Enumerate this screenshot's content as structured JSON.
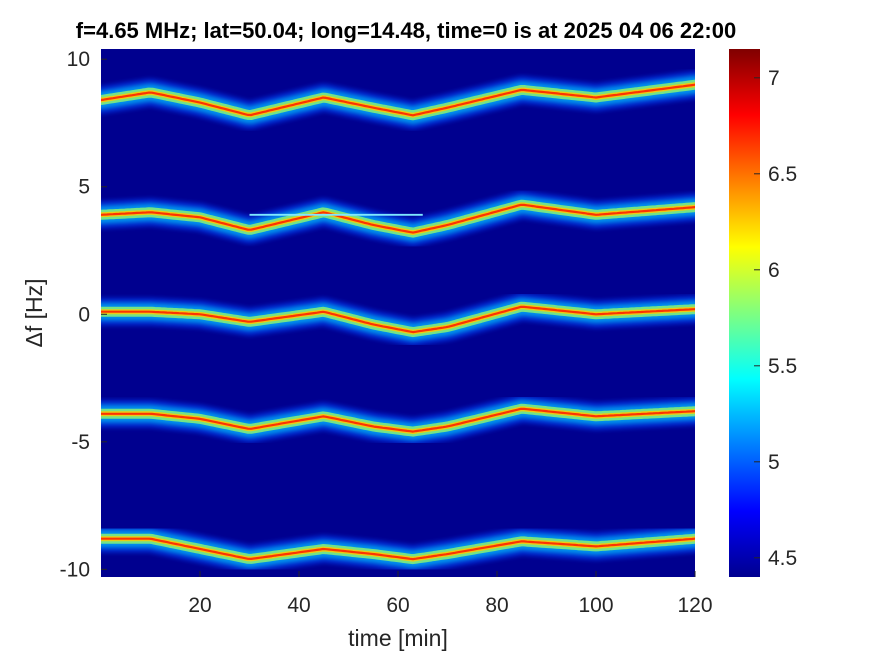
{
  "chart_data": {
    "type": "heatmap",
    "title": "f=4.65 MHz;  lat=50.04; long=14.48, time=0 is at 2025 04 06 22:00",
    "xlabel": "time [min]",
    "ylabel": "Δf [Hz]",
    "xlim": [
      0,
      120
    ],
    "ylim": [
      -10.3,
      10.4
    ],
    "xticks": [
      20,
      40,
      60,
      80,
      100,
      120
    ],
    "xtick_labels": [
      "20",
      "40",
      "60",
      "80",
      "100",
      "120"
    ],
    "yticks": [
      10,
      5,
      0,
      -5,
      -10
    ],
    "ytick_labels": [
      "10",
      "5",
      "0",
      "-5",
      "-10"
    ],
    "colormap": "jet",
    "background_color": "#00008f",
    "colorbar": {
      "min": 4.4,
      "max": 7.15,
      "ticks": [
        7,
        6.5,
        6,
        5.5,
        5,
        4.5
      ],
      "tick_labels": [
        "7",
        "6.5",
        "6",
        "5.5",
        "5",
        "4.5"
      ]
    },
    "traces": [
      {
        "name": "",
        "points": [
          [
            0,
            8.4
          ],
          [
            10,
            8.7
          ],
          [
            20,
            8.3
          ],
          [
            30,
            7.8
          ],
          [
            45,
            8.5
          ],
          [
            55,
            8.1
          ],
          [
            63,
            7.8
          ],
          [
            70,
            8.1
          ],
          [
            85,
            8.8
          ],
          [
            100,
            8.5
          ],
          [
            120,
            9.0
          ]
        ]
      },
      {
        "name": "",
        "points": [
          [
            0,
            3.9
          ],
          [
            10,
            4.0
          ],
          [
            20,
            3.8
          ],
          [
            30,
            3.3
          ],
          [
            45,
            4.0
          ],
          [
            55,
            3.5
          ],
          [
            63,
            3.2
          ],
          [
            70,
            3.5
          ],
          [
            85,
            4.3
          ],
          [
            100,
            3.9
          ],
          [
            120,
            4.2
          ]
        ]
      },
      {
        "name": "",
        "points": [
          [
            0,
            0.1
          ],
          [
            10,
            0.1
          ],
          [
            20,
            0.0
          ],
          [
            30,
            -0.3
          ],
          [
            45,
            0.1
          ],
          [
            55,
            -0.4
          ],
          [
            63,
            -0.7
          ],
          [
            70,
            -0.5
          ],
          [
            85,
            0.3
          ],
          [
            100,
            0.0
          ],
          [
            120,
            0.2
          ]
        ]
      },
      {
        "name": "",
        "points": [
          [
            0,
            -3.9
          ],
          [
            10,
            -3.9
          ],
          [
            20,
            -4.1
          ],
          [
            30,
            -4.5
          ],
          [
            45,
            -4.0
          ],
          [
            55,
            -4.4
          ],
          [
            63,
            -4.6
          ],
          [
            70,
            -4.4
          ],
          [
            85,
            -3.7
          ],
          [
            100,
            -4.0
          ],
          [
            120,
            -3.8
          ]
        ]
      },
      {
        "name": "",
        "points": [
          [
            0,
            -8.8
          ],
          [
            10,
            -8.8
          ],
          [
            20,
            -9.2
          ],
          [
            30,
            -9.6
          ],
          [
            45,
            -9.2
          ],
          [
            55,
            -9.4
          ],
          [
            63,
            -9.6
          ],
          [
            70,
            -9.4
          ],
          [
            85,
            -8.9
          ],
          [
            100,
            -9.1
          ],
          [
            120,
            -8.8
          ]
        ]
      }
    ],
    "reference_line": {
      "x": [
        30,
        65
      ],
      "y": 3.9,
      "color": "#7fe8ff"
    }
  }
}
